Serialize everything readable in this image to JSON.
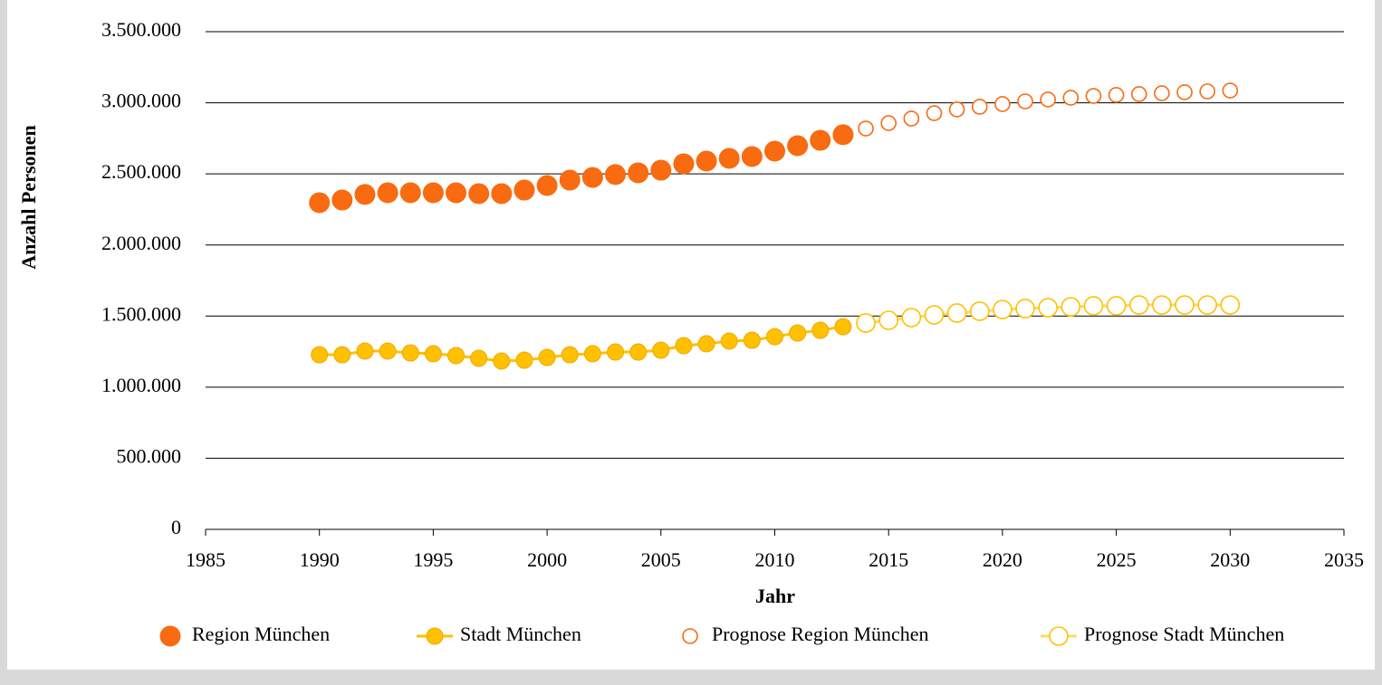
{
  "chart_data": {
    "type": "scatter",
    "xlabel": "Jahr",
    "ylabel": "Anzahl Personen",
    "xlim": [
      1985,
      2035
    ],
    "xticks": [
      1985,
      1990,
      1995,
      2000,
      2005,
      2010,
      2015,
      2020,
      2025,
      2030,
      2035
    ],
    "ylim": [
      0,
      3500000
    ],
    "yticks": [
      0,
      {
        "value": 500000,
        "label": "500.000"
      },
      {
        "value": 1000000,
        "label": "1.000.000"
      },
      {
        "value": 1500000,
        "label": "1.500.000"
      },
      {
        "value": 2000000,
        "label": "2.000.000"
      },
      {
        "value": 2500000,
        "label": "2.500.000"
      },
      {
        "value": 3000000,
        "label": "3.000.000"
      },
      {
        "value": 3500000,
        "label": "3.500.000"
      }
    ],
    "grid": true,
    "legend": "bottom",
    "series": [
      {
        "name": "Region München",
        "color": "#f96b10",
        "marker": "filled",
        "line": false,
        "x": [
          1990,
          1991,
          1992,
          1993,
          1994,
          1995,
          1996,
          1997,
          1998,
          1999,
          2000,
          2001,
          2002,
          2003,
          2004,
          2005,
          2006,
          2007,
          2008,
          2009,
          2010,
          2011,
          2012,
          2013
        ],
        "values": [
          2297000,
          2316000,
          2355000,
          2367000,
          2367000,
          2367000,
          2367000,
          2361000,
          2361000,
          2386000,
          2418000,
          2456000,
          2475000,
          2495000,
          2507000,
          2526000,
          2571000,
          2590000,
          2609000,
          2622000,
          2660000,
          2698000,
          2736000,
          2775000
        ]
      },
      {
        "name": "Stadt München",
        "color": "#ffc000",
        "marker": "filled",
        "line": true,
        "x": [
          1990,
          1991,
          1992,
          1993,
          1994,
          1995,
          1996,
          1997,
          1998,
          1999,
          2000,
          2001,
          2002,
          2003,
          2004,
          2005,
          2006,
          2007,
          2008,
          2009,
          2010,
          2011,
          2012,
          2013
        ],
        "values": [
          1228000,
          1228000,
          1254000,
          1254000,
          1241000,
          1235000,
          1222000,
          1203000,
          1184000,
          1190000,
          1209000,
          1228000,
          1235000,
          1247000,
          1247000,
          1260000,
          1292000,
          1305000,
          1324000,
          1330000,
          1355000,
          1381000,
          1400000,
          1425000
        ]
      },
      {
        "name": "Prognose Region München",
        "color": "#f96b10",
        "marker": "hollow",
        "line": false,
        "x": [
          2014,
          2015,
          2016,
          2017,
          2018,
          2019,
          2020,
          2021,
          2022,
          2023,
          2024,
          2025,
          2026,
          2027,
          2028,
          2029,
          2030
        ],
        "values": [
          2819000,
          2857000,
          2889000,
          2927000,
          2953000,
          2972000,
          2991000,
          3010000,
          3023000,
          3035000,
          3048000,
          3055000,
          3061000,
          3067000,
          3074000,
          3080000,
          3086000
        ]
      },
      {
        "name": "Prognose Stadt München",
        "color": "#ffc000",
        "marker": "hollow",
        "line": true,
        "x": [
          2014,
          2015,
          2016,
          2017,
          2018,
          2019,
          2020,
          2021,
          2022,
          2023,
          2024,
          2025,
          2026,
          2027,
          2028,
          2029,
          2030
        ],
        "values": [
          1451000,
          1470000,
          1489000,
          1508000,
          1521000,
          1534000,
          1546000,
          1553000,
          1559000,
          1565000,
          1572000,
          1572000,
          1578000,
          1578000,
          1578000,
          1578000,
          1578000
        ]
      }
    ]
  }
}
